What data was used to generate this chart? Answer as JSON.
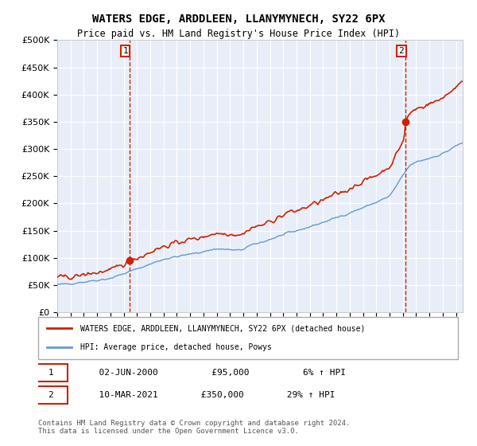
{
  "title": "WATERS EDGE, ARDDLEEN, LLANYMYNECH, SY22 6PX",
  "subtitle": "Price paid vs. HM Land Registry's House Price Index (HPI)",
  "bg_color": "#e8eef8",
  "plot_bg_color": "#e8eef8",
  "legend_line1": "WATERS EDGE, ARDDLEEN, LLANYMYNECH, SY22 6PX (detached house)",
  "legend_line2": "HPI: Average price, detached house, Powys",
  "sale1_label": "1",
  "sale1_date": "02-JUN-2000",
  "sale1_price": "£95,000",
  "sale1_hpi": "6% ↑ HPI",
  "sale1_year": 2000.42,
  "sale1_value": 95000,
  "sale2_label": "2",
  "sale2_date": "10-MAR-2021",
  "sale2_price": "£350,000",
  "sale2_hpi": "29% ↑ HPI",
  "sale2_year": 2021.19,
  "sale2_value": 350000,
  "footer": "Contains HM Land Registry data © Crown copyright and database right 2024.\nThis data is licensed under the Open Government Licence v3.0.",
  "ylim": [
    0,
    500000
  ],
  "yticks": [
    0,
    50000,
    100000,
    150000,
    200000,
    250000,
    300000,
    350000,
    400000,
    450000,
    500000
  ],
  "xlim_start": 1995.0,
  "xlim_end": 2025.5,
  "xticks": [
    1995,
    1996,
    1997,
    1998,
    1999,
    2000,
    2001,
    2002,
    2003,
    2004,
    2005,
    2006,
    2007,
    2008,
    2009,
    2010,
    2011,
    2012,
    2013,
    2014,
    2015,
    2016,
    2017,
    2018,
    2019,
    2020,
    2021,
    2022,
    2023,
    2024,
    2025
  ],
  "hpi_color": "#6699cc",
  "price_color": "#cc2200",
  "vline_color": "#cc2200",
  "marker_color": "#cc2200"
}
